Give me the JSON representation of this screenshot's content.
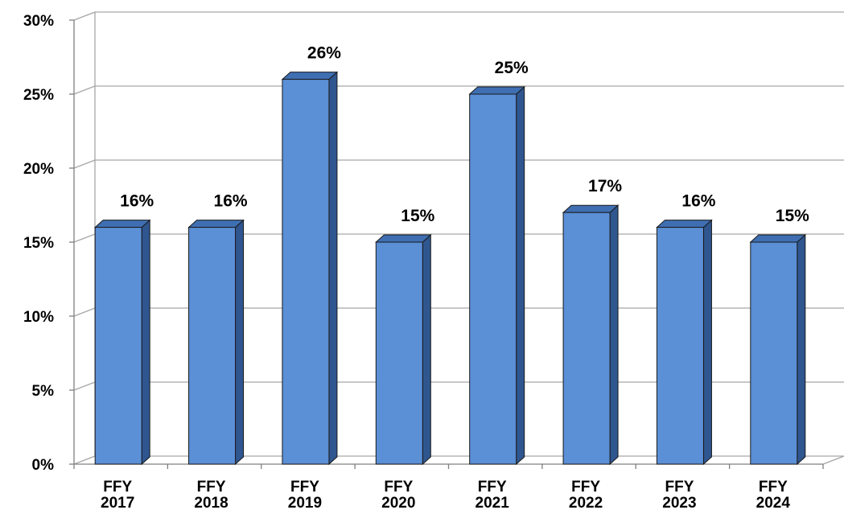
{
  "chart_data": {
    "type": "bar",
    "categories": [
      [
        "FFY",
        "2017"
      ],
      [
        "FFY",
        "2018"
      ],
      [
        "FFY",
        "2019"
      ],
      [
        "FFY",
        "2020"
      ],
      [
        "FFY",
        "2021"
      ],
      [
        "FFY",
        "2022"
      ],
      [
        "FFY",
        "2023"
      ],
      [
        "FFY",
        "2024"
      ]
    ],
    "values": [
      16,
      16,
      26,
      15,
      25,
      17,
      16,
      15
    ],
    "data_labels": [
      "16%",
      "16%",
      "26%",
      "15%",
      "25%",
      "17%",
      "16%",
      "15%"
    ],
    "ylim": [
      0,
      30
    ],
    "yticks": [
      0,
      5,
      10,
      15,
      20,
      25,
      30
    ],
    "ytick_labels": [
      "0%",
      "5%",
      "10%",
      "15%",
      "20%",
      "25%",
      "30%"
    ],
    "grid": true,
    "style": "3d",
    "colors": {
      "bar_front": "#5b8fd6",
      "bar_top": "#3f6fb2",
      "bar_side": "#2f568f",
      "bar_edge": "#1a1a1a",
      "grid": "#a6a6a6"
    }
  }
}
